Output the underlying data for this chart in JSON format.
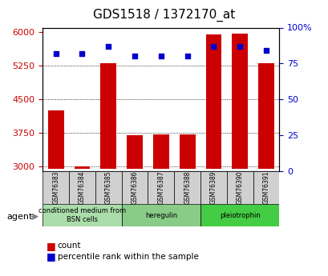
{
  "title": "GDS1518 / 1372170_at",
  "categories": [
    "GSM76383",
    "GSM76384",
    "GSM76385",
    "GSM76386",
    "GSM76387",
    "GSM76388",
    "GSM76389",
    "GSM76390",
    "GSM76391"
  ],
  "count_values": [
    4250,
    3000,
    5300,
    3700,
    3720,
    3720,
    5950,
    5970,
    5300
  ],
  "percentile_values": [
    82,
    82,
    87,
    80,
    80,
    80,
    87,
    87,
    84
  ],
  "ylim_left": [
    2900,
    6100
  ],
  "ylim_right": [
    0,
    100
  ],
  "yticks_left": [
    3000,
    3750,
    4500,
    5250,
    6000
  ],
  "yticks_right": [
    0,
    25,
    50,
    75,
    100
  ],
  "bar_color": "#cc0000",
  "dot_color": "#0000cc",
  "agent_groups": [
    {
      "label": "conditioned medium from\nBSN cells",
      "start": 0,
      "end": 3,
      "color": "#aaffaa"
    },
    {
      "label": "heregulin",
      "start": 3,
      "end": 6,
      "color": "#88ee88"
    },
    {
      "label": "pleiotrophin",
      "start": 6,
      "end": 9,
      "color": "#44dd44"
    }
  ],
  "xlabel_bottom": "agent",
  "legend_items": [
    {
      "color": "#cc0000",
      "label": "count"
    },
    {
      "color": "#0000cc",
      "label": "percentile rank within the sample"
    }
  ],
  "bg_color": "#ffffff",
  "plot_bg_color": "#ffffff",
  "tick_label_color_left": "#cc0000",
  "tick_label_color_right": "#0000cc",
  "bar_width": 0.6,
  "baseline": 2950
}
